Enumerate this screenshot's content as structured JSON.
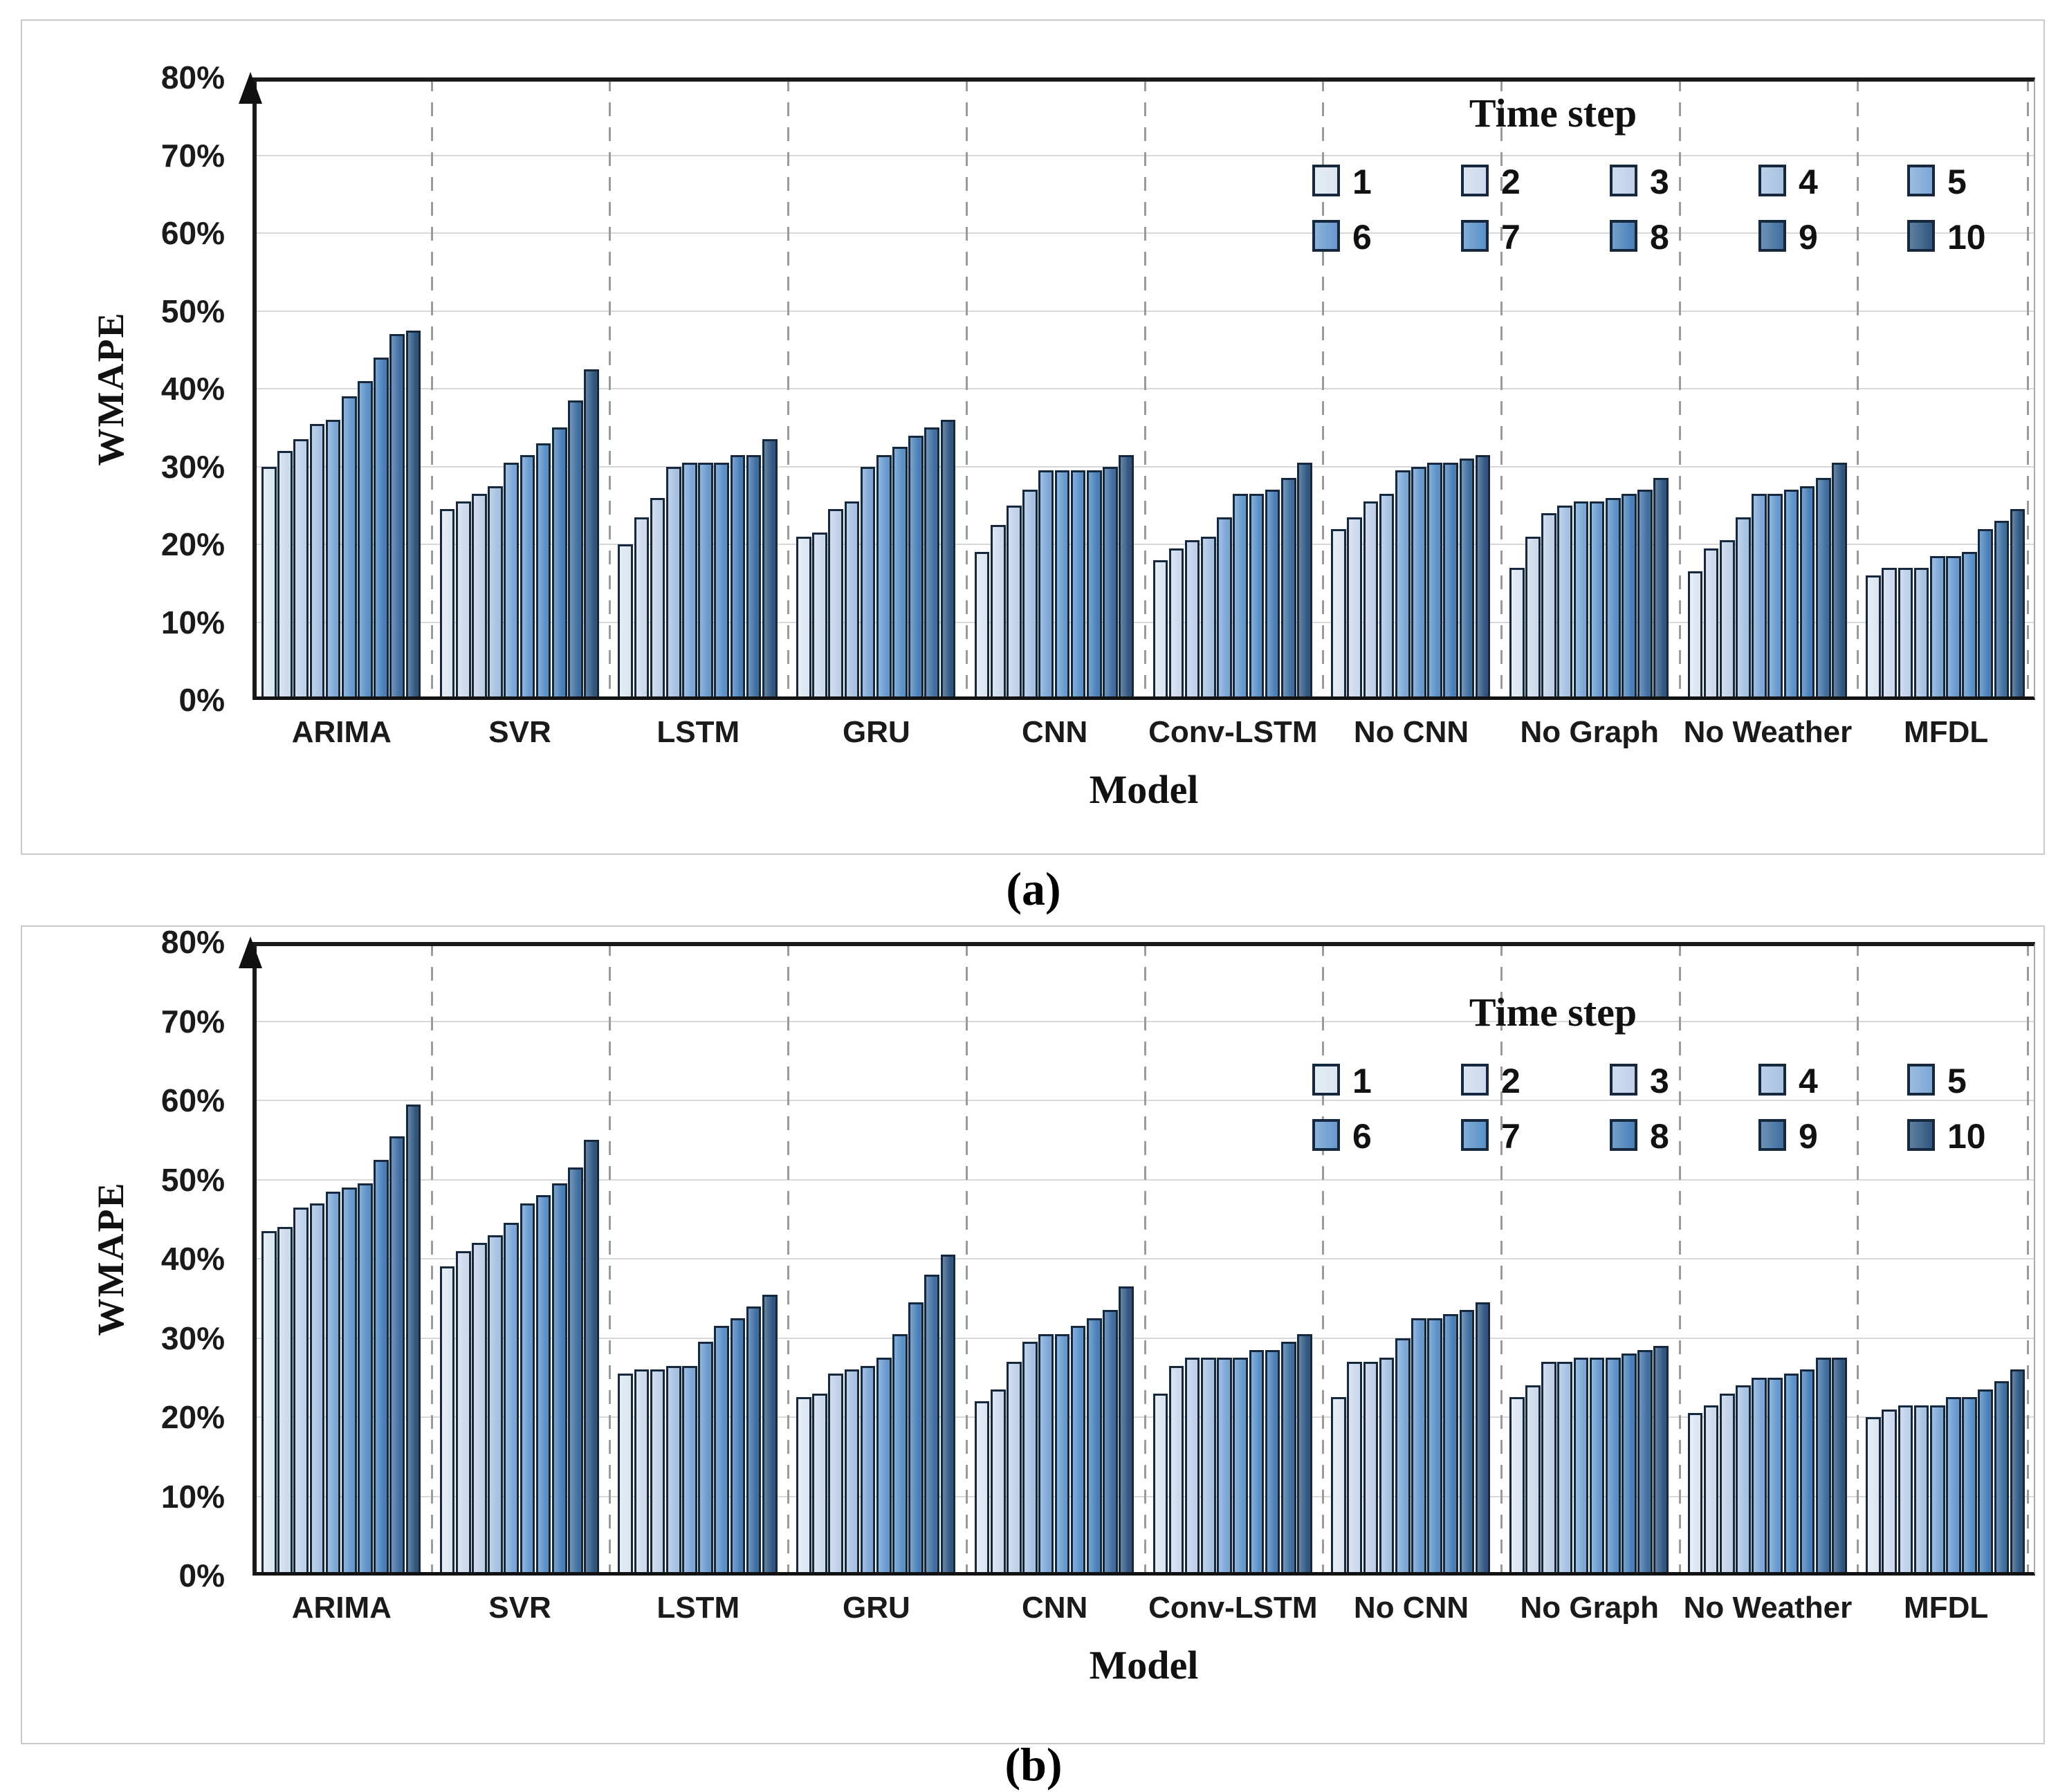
{
  "page": {
    "caption_a": "(a)",
    "caption_b": "(b)"
  },
  "axis": {
    "y_label": "WMAPE",
    "x_label": "Model",
    "y_ticks": [
      "80%",
      "70%",
      "60%",
      "50%",
      "40%",
      "30%",
      "20%",
      "10%",
      "0%"
    ],
    "y_max": 80
  },
  "legend": {
    "title": "Time step",
    "steps": [
      "1",
      "2",
      "3",
      "4",
      "5",
      "6",
      "7",
      "8",
      "9",
      "10"
    ]
  },
  "colors": {
    "steps": [
      "#dce6f1",
      "#cdd9ec",
      "#c0d0e8",
      "#a6c1e1",
      "#7ba6d5",
      "#6699cd",
      "#5890c7",
      "#477fb8",
      "#3e6d9f",
      "#2e567f"
    ],
    "bar_border": "#15283e",
    "gridline": "#d9d9d9",
    "separator": "#9b9b9b",
    "axis": "#111111",
    "panel_border": "#c9c9c9"
  },
  "chart_data": [
    {
      "type": "bar",
      "panel": "a",
      "title": "(a)",
      "xlabel": "Model",
      "ylabel": "WMAPE",
      "ylim": [
        0,
        80
      ],
      "grid": true,
      "legend_position": "top-right",
      "categories": [
        "ARIMA",
        "SVR",
        "LSTM",
        "GRU",
        "CNN",
        "Conv-LSTM",
        "No CNN",
        "No Graph",
        "No Weather",
        "MFDL"
      ],
      "series": [
        {
          "name": "1",
          "values": [
            30,
            24.5,
            20,
            21,
            19,
            18,
            22,
            17,
            16.5,
            16
          ]
        },
        {
          "name": "2",
          "values": [
            32,
            25.5,
            23.5,
            21.5,
            22.5,
            19.5,
            23.5,
            21,
            19.5,
            17
          ]
        },
        {
          "name": "3",
          "values": [
            33.5,
            26.5,
            26,
            24.5,
            25,
            20.5,
            25.5,
            24,
            20.5,
            17
          ]
        },
        {
          "name": "4",
          "values": [
            35.5,
            27.5,
            30,
            25.5,
            27,
            21,
            26.5,
            25,
            23.5,
            17
          ]
        },
        {
          "name": "5",
          "values": [
            36,
            30.5,
            30.5,
            30,
            29.5,
            23.5,
            29.5,
            25.5,
            26.5,
            18.5
          ]
        },
        {
          "name": "6",
          "values": [
            39,
            31.5,
            30.5,
            31.5,
            29.5,
            26.5,
            30,
            25.5,
            26.5,
            18.5
          ]
        },
        {
          "name": "7",
          "values": [
            41,
            33,
            30.5,
            32.5,
            29.5,
            26.5,
            30.5,
            26,
            27,
            19
          ]
        },
        {
          "name": "8",
          "values": [
            44,
            35,
            31.5,
            34,
            29.5,
            27,
            30.5,
            26.5,
            27.5,
            22
          ]
        },
        {
          "name": "9",
          "values": [
            47,
            38.5,
            31.5,
            35,
            30,
            28.5,
            31,
            27,
            28.5,
            23
          ]
        },
        {
          "name": "10",
          "values": [
            47.5,
            42.5,
            33.5,
            36,
            31.5,
            30.5,
            31.5,
            28.5,
            30.5,
            24.5
          ]
        }
      ]
    },
    {
      "type": "bar",
      "panel": "b",
      "title": "(b)",
      "xlabel": "Model",
      "ylabel": "WMAPE",
      "ylim": [
        0,
        80
      ],
      "grid": true,
      "legend_position": "top-right",
      "categories": [
        "ARIMA",
        "SVR",
        "LSTM",
        "GRU",
        "CNN",
        "Conv-LSTM",
        "No CNN",
        "No Graph",
        "No Weather",
        "MFDL"
      ],
      "series": [
        {
          "name": "1",
          "values": [
            43.5,
            39,
            25.5,
            22.5,
            22,
            23,
            22.5,
            22.5,
            20.5,
            20
          ]
        },
        {
          "name": "2",
          "values": [
            44,
            41,
            26,
            23,
            23.5,
            26.5,
            27,
            24,
            21.5,
            21
          ]
        },
        {
          "name": "3",
          "values": [
            46.5,
            42,
            26,
            25.5,
            27,
            27.5,
            27,
            27,
            23,
            21.5
          ]
        },
        {
          "name": "4",
          "values": [
            47,
            43,
            26.5,
            26,
            29.5,
            27.5,
            27.5,
            27,
            24,
            21.5
          ]
        },
        {
          "name": "5",
          "values": [
            48.5,
            44.5,
            26.5,
            26.5,
            30.5,
            27.5,
            30,
            27.5,
            25,
            21.5
          ]
        },
        {
          "name": "6",
          "values": [
            49,
            47,
            29.5,
            27.5,
            30.5,
            27.5,
            32.5,
            27.5,
            25,
            22.5
          ]
        },
        {
          "name": "7",
          "values": [
            49.5,
            48,
            31.5,
            30.5,
            31.5,
            28.5,
            32.5,
            27.5,
            25.5,
            22.5
          ]
        },
        {
          "name": "8",
          "values": [
            52.5,
            49.5,
            32.5,
            34.5,
            32.5,
            28.5,
            33,
            28,
            26,
            23.5
          ]
        },
        {
          "name": "9",
          "values": [
            55.5,
            51.5,
            34,
            38,
            33.5,
            29.5,
            33.5,
            28.5,
            27.5,
            24.5
          ]
        },
        {
          "name": "10",
          "values": [
            59.5,
            55,
            35.5,
            40.5,
            36.5,
            30.5,
            34.5,
            29,
            27.5,
            26
          ]
        }
      ]
    }
  ]
}
